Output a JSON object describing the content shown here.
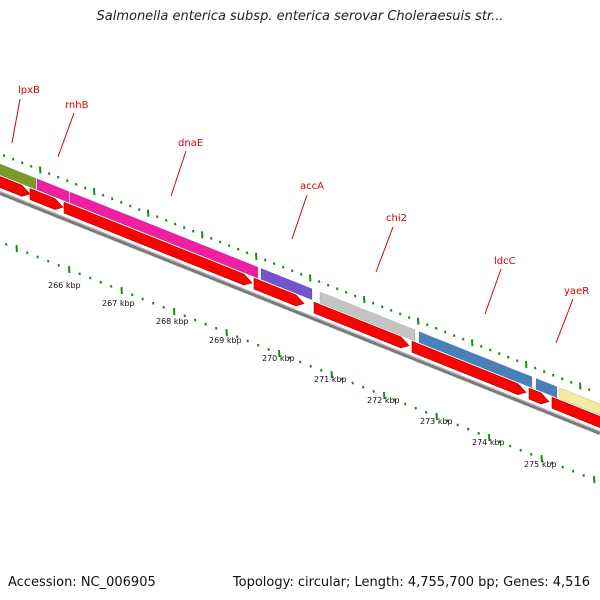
{
  "title": "Salmonella enterica subsp. enterica serovar Choleraesuis str...",
  "accession_label": "Accession: NC_006905",
  "summary_label": "Topology: circular; Length: 4,755,700 bp; Genes: 4,516",
  "colors": {
    "gene_label": "#d40000",
    "cds_arrow": "#ff0000",
    "backbone": "#7a7a7a",
    "ticks": "#1a8a1a"
  },
  "genes": [
    {
      "name": "lpxB",
      "color": "#7a9a2a"
    },
    {
      "name": "rnhB",
      "color": "#f01ea0"
    },
    {
      "name": "dnaE",
      "color": "#f01ea0"
    },
    {
      "name": "accA",
      "color": "#7055cc"
    },
    {
      "name": "chi2",
      "color": "#c4c4c4"
    },
    {
      "name": "ldcC",
      "color": "#4a80b8"
    },
    {
      "name": "yaeR",
      "color": "#4a80b8"
    },
    {
      "name": "",
      "color": "#f4eba0"
    }
  ],
  "scale_ticks": [
    "266 kbp",
    "267 kbp",
    "268 kbp",
    "269 kbp",
    "270 kbp",
    "271 kbp",
    "272 kbp",
    "273 kbp",
    "274 kbp",
    "275 kbp"
  ]
}
